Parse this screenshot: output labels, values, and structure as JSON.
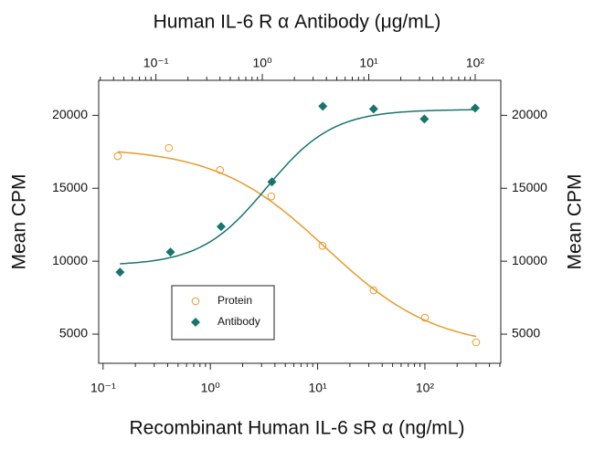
{
  "chart_data": {
    "type": "scatter",
    "title": "Human IL-6 R α Antibody (μg/mL)",
    "x_label": "Recombinant Human IL-6 sR α (ng/mL)",
    "y_label": "Mean CPM",
    "y2_label": "Mean CPM",
    "xscale": "log",
    "x2scale": "log",
    "xlim": [
      0.091,
      510
    ],
    "x2lim": [
      0.029,
      174
    ],
    "ylim": [
      3000,
      22400
    ],
    "y2lim": [
      3000,
      22400
    ],
    "xticks": [
      {
        "value": 0.1,
        "label": "10⁻¹"
      },
      {
        "value": 1,
        "label": "10⁰"
      },
      {
        "value": 10,
        "label": "10¹"
      },
      {
        "value": 100,
        "label": "10²"
      }
    ],
    "x2ticks": [
      {
        "value": 0.1,
        "label": "10⁻¹"
      },
      {
        "value": 1,
        "label": "10⁰"
      },
      {
        "value": 10,
        "label": "10¹"
      },
      {
        "value": 100,
        "label": "10²"
      }
    ],
    "yticks": [
      5000,
      10000,
      15000,
      20000
    ],
    "y2ticks": [
      5000,
      10000,
      15000,
      20000
    ],
    "series": [
      {
        "name": "Protein",
        "color": "#e89a2c",
        "marker": "circle",
        "xaxis": "x",
        "x": [
          0.137,
          0.41,
          1.23,
          3.7,
          11.1,
          33.3,
          100,
          300
        ],
        "values": [
          17200,
          17760,
          16250,
          14440,
          11060,
          8000,
          6125,
          4440
        ],
        "fit": {
          "bottom": 4000,
          "top": 17800,
          "ec50": 12,
          "hill": -0.85
        }
      },
      {
        "name": "Antibody",
        "color": "#17756f",
        "marker": "diamond",
        "xaxis": "x2",
        "x": [
          0.046,
          0.137,
          0.41,
          1.23,
          3.7,
          11.1,
          33.3,
          100
        ],
        "values": [
          9250,
          10625,
          12375,
          15440,
          20625,
          20440,
          19750,
          20500
        ],
        "fit": {
          "bottom": 9700,
          "top": 20400,
          "ec50": 1.1,
          "hill": 1.4
        }
      }
    ]
  }
}
